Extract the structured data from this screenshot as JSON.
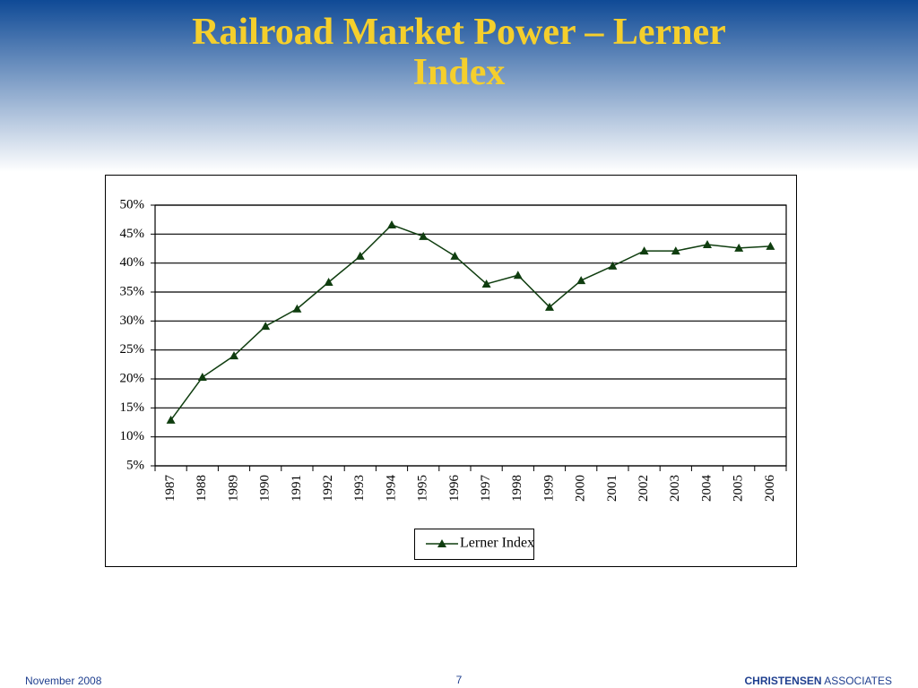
{
  "chart_data": {
    "type": "line",
    "title": "Railroad Market Power – Lerner Index",
    "categories": [
      "1987",
      "1988",
      "1989",
      "1990",
      "1991",
      "1992",
      "1993",
      "1994",
      "1995",
      "1996",
      "1997",
      "1998",
      "1999",
      "2000",
      "2001",
      "2002",
      "2003",
      "2004",
      "2005",
      "2006"
    ],
    "series": [
      {
        "name": "Lerner Index",
        "color": "#0f3d0f",
        "values": [
          12.9,
          20.3,
          24.0,
          29.1,
          32.1,
          36.7,
          41.2,
          46.6,
          44.6,
          41.2,
          36.4,
          37.9,
          32.4,
          37.0,
          39.5,
          42.1,
          42.1,
          43.2,
          42.6,
          42.9
        ]
      }
    ],
    "ylim": [
      5,
      50
    ],
    "yticks": [
      {
        "value": 5,
        "label": "5%"
      },
      {
        "value": 10,
        "label": "10%"
      },
      {
        "value": 15,
        "label": "15%"
      },
      {
        "value": 20,
        "label": "20%"
      },
      {
        "value": 25,
        "label": "25%"
      },
      {
        "value": 30,
        "label": "30%"
      },
      {
        "value": 35,
        "label": "35%"
      },
      {
        "value": 40,
        "label": "40%"
      },
      {
        "value": 45,
        "label": "45%"
      },
      {
        "value": 50,
        "label": "50%"
      }
    ],
    "grid": true,
    "legend": "bottom"
  },
  "footer": {
    "date": "November 2008",
    "page": "7",
    "company_bold": "CHRISTENSEN",
    "company": "ASSOCIATES"
  }
}
